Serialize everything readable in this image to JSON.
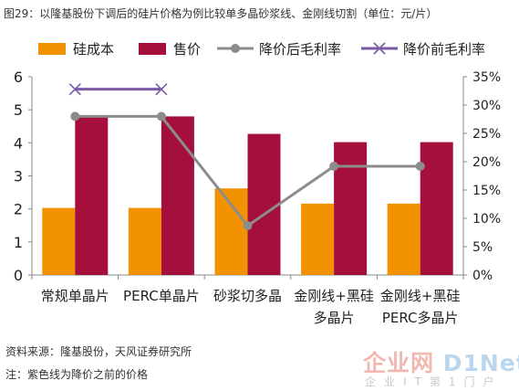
{
  "page": {
    "title": "图29：以隆基股份下调后的硅片价格为例比较单多晶砂浆线、金刚线切割（单位：元/片）",
    "source": "资料来源：隆基股份，天风证券研究所",
    "note": "注：紫色线为降价之前的价格"
  },
  "watermark": {
    "text_main": "企业网",
    "text_brand": "D1Net",
    "text_sub": "企业IT第1门户"
  },
  "colors": {
    "cost": "#f39200",
    "price": "#a50f3c",
    "margin_after": "#8c8c8c",
    "margin_before": "#7a5aa6",
    "axis": "#888888"
  },
  "chart_data": {
    "type": "bar",
    "categories": [
      [
        "常规单晶片"
      ],
      [
        "PERC单晶片"
      ],
      [
        "砂浆切多晶"
      ],
      [
        "金刚线+黑硅",
        "多晶片"
      ],
      [
        "金刚线+黑硅",
        "PERC多晶片"
      ]
    ],
    "series": [
      {
        "name": "硅成本",
        "kind": "bar",
        "axis": "left",
        "values": [
          2.03,
          2.03,
          2.62,
          2.16,
          2.16
        ]
      },
      {
        "name": "售价",
        "kind": "bar",
        "axis": "left",
        "values": [
          4.8,
          4.8,
          4.27,
          4.02,
          4.02
        ]
      },
      {
        "name": "降价后毛利率",
        "kind": "line",
        "marker": "circle",
        "axis": "right",
        "values": [
          28.0,
          28.0,
          8.7,
          19.2,
          19.2
        ]
      },
      {
        "name": "降价前毛利率",
        "kind": "line",
        "marker": "x",
        "axis": "right",
        "values": [
          32.8,
          32.8,
          null,
          null,
          null
        ]
      }
    ],
    "y_left": {
      "min": 0,
      "max": 6,
      "ticks": [
        "0",
        "1",
        "2",
        "3",
        "4",
        "5",
        "6"
      ]
    },
    "y_right": {
      "min": 0,
      "max": 35,
      "ticks": [
        "0%",
        "5%",
        "10%",
        "15%",
        "20%",
        "25%",
        "30%",
        "35%"
      ]
    },
    "grid": false,
    "legend_position": "top"
  }
}
